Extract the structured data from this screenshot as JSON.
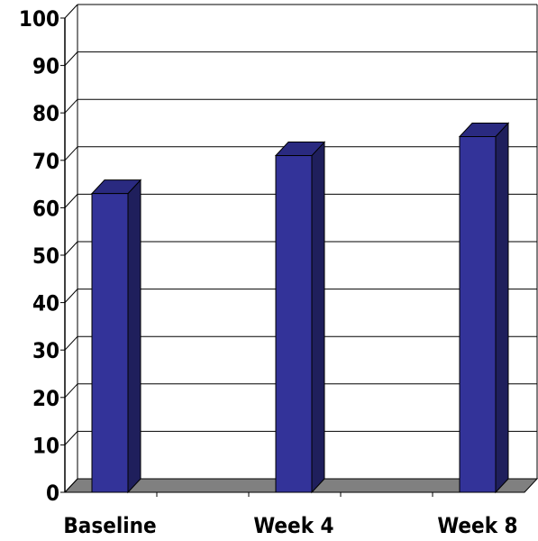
{
  "chart_data": {
    "type": "bar",
    "style": "3d-column",
    "categories": [
      "Baseline",
      "Week 4",
      "Week 8"
    ],
    "values": [
      63,
      71,
      75
    ],
    "title": "",
    "xlabel": "",
    "ylabel": "",
    "ylim": [
      0,
      100
    ],
    "yticks": [
      "0",
      "10",
      "20",
      "30",
      "40",
      "50",
      "60",
      "70",
      "80",
      "90",
      "100"
    ],
    "grid": true,
    "legend": "none",
    "colors": {
      "bar_front": "#333399",
      "bar_side": "#1f1f5c",
      "bar_top": "#2a2a80",
      "floor": "#808080",
      "grid": "#000000"
    }
  }
}
